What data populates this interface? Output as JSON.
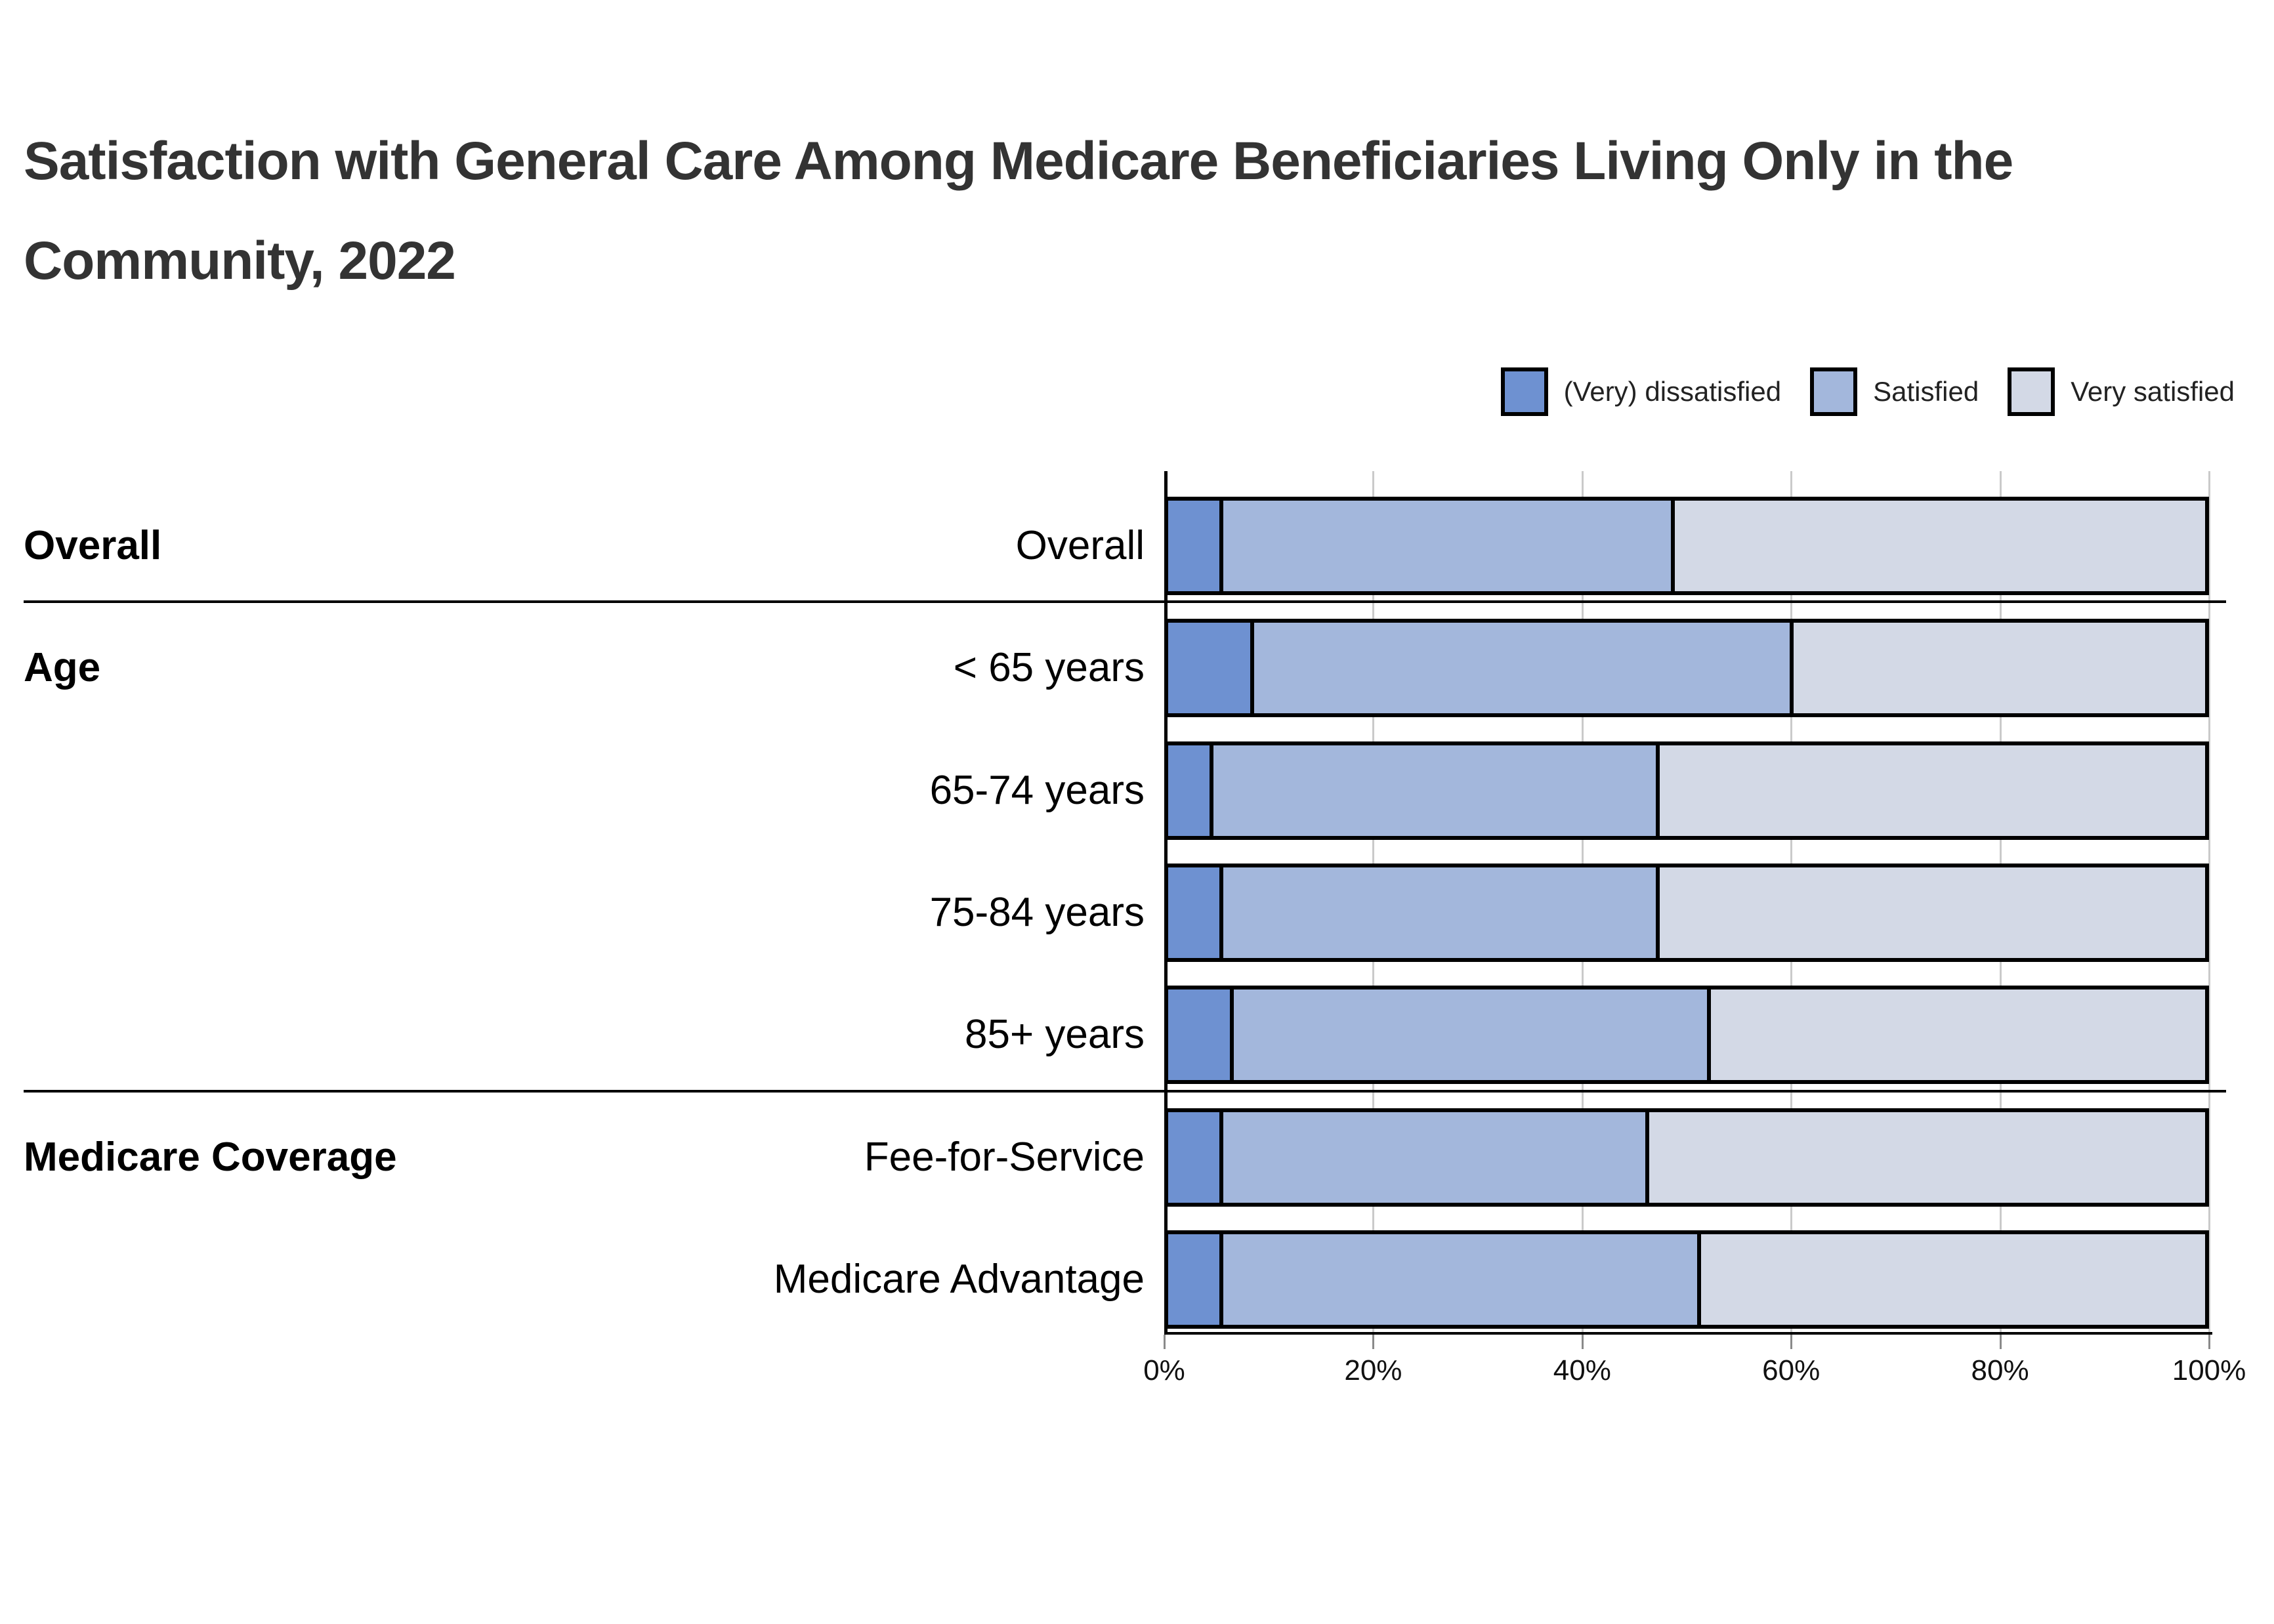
{
  "title": "Satisfaction with General Care Among Medicare Beneficiaries Living Only in the Community, 2022",
  "title_lines": [
    "Satisfaction with General Care Among Medicare Beneficiaries Living Only in the",
    "Community, 2022"
  ],
  "legend": [
    {
      "label": "(Very) dissatisfied",
      "color": "#6e91d1"
    },
    {
      "label": "Satisfied",
      "color": "#a3b7dc"
    },
    {
      "label": "Very satisfied",
      "color": "#d3d9e6"
    }
  ],
  "colors": {
    "dissatisfied": "#6e91d1",
    "satisfied": "#a3b7dc",
    "very_satisfied": "#d3d9e6",
    "axis": "#000000",
    "gridline": "#cacaca",
    "title_text": "#333333"
  },
  "chart_data": {
    "type": "bar",
    "orientation": "horizontal",
    "stacked": true,
    "title": "Satisfaction with General Care Among Medicare Beneficiaries Living Only in the Community, 2022",
    "xlabel": "",
    "ylabel": "",
    "unit": "percent",
    "xlim": [
      0,
      100
    ],
    "x_ticks": [
      "0%",
      "20%",
      "40%",
      "60%",
      "80%",
      "100%"
    ],
    "grid": true,
    "legend_position": "top-right",
    "series_names": [
      "(Very) dissatisfied",
      "Satisfied",
      "Very satisfied"
    ],
    "groups": [
      {
        "label": "Overall",
        "rows": [
          {
            "label": "Overall",
            "values": [
              5,
              43.5,
              51.5
            ]
          }
        ]
      },
      {
        "label": "Age",
        "rows": [
          {
            "label": "< 65 years",
            "values": [
              8,
              52,
              40
            ]
          },
          {
            "label": "65-74 years",
            "values": [
              4,
              43,
              53
            ]
          },
          {
            "label": "75-84 years",
            "values": [
              5,
              42,
              53
            ]
          },
          {
            "label": "85+ years",
            "values": [
              6,
              46,
              48
            ]
          }
        ]
      },
      {
        "label": "Medicare Coverage",
        "rows": [
          {
            "label": "Fee-for-Service",
            "values": [
              5,
              41,
              54
            ]
          },
          {
            "label": "Medicare Advantage",
            "values": [
              5,
              46,
              49
            ]
          }
        ]
      }
    ]
  }
}
